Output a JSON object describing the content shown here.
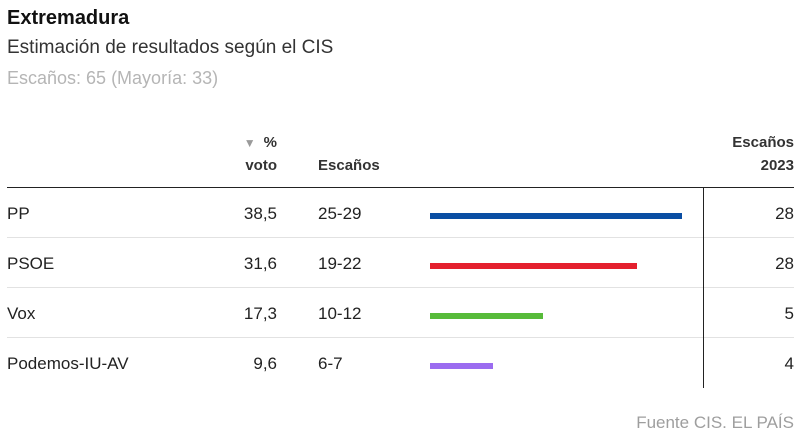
{
  "header": {
    "title": "Extremadura",
    "subtitle": "Estimación de resultados según el CIS",
    "note": "Escaños: 65 (Mayoría: 33)"
  },
  "columns": {
    "sort_arrow": "▼",
    "pct_line1": "%",
    "pct_line2": "voto",
    "seats": "Escaños",
    "seats2023_line1": "Escaños",
    "seats2023_line2": "2023"
  },
  "source": "Fuente CIS. EL PAÍS",
  "chart_data": {
    "type": "table",
    "title": "Extremadura",
    "subtitle": "Estimación de resultados según el CIS",
    "bar_max": 38.5,
    "rows": [
      {
        "party": "PP",
        "pct": "38,5",
        "pct_value": 38.5,
        "seats": "25-29",
        "seats_2023": "28",
        "color": "#0a4ea3"
      },
      {
        "party": "PSOE",
        "pct": "31,6",
        "pct_value": 31.6,
        "seats": "19-22",
        "seats_2023": "28",
        "color": "#e4202e"
      },
      {
        "party": "Vox",
        "pct": "17,3",
        "pct_value": 17.3,
        "seats": "10-12",
        "seats_2023": "5",
        "color": "#57bb3a"
      },
      {
        "party": "Podemos-IU-AV",
        "pct": "9,6",
        "pct_value": 9.6,
        "seats": "6-7",
        "seats_2023": "4",
        "color": "#9b6cf0"
      }
    ]
  }
}
